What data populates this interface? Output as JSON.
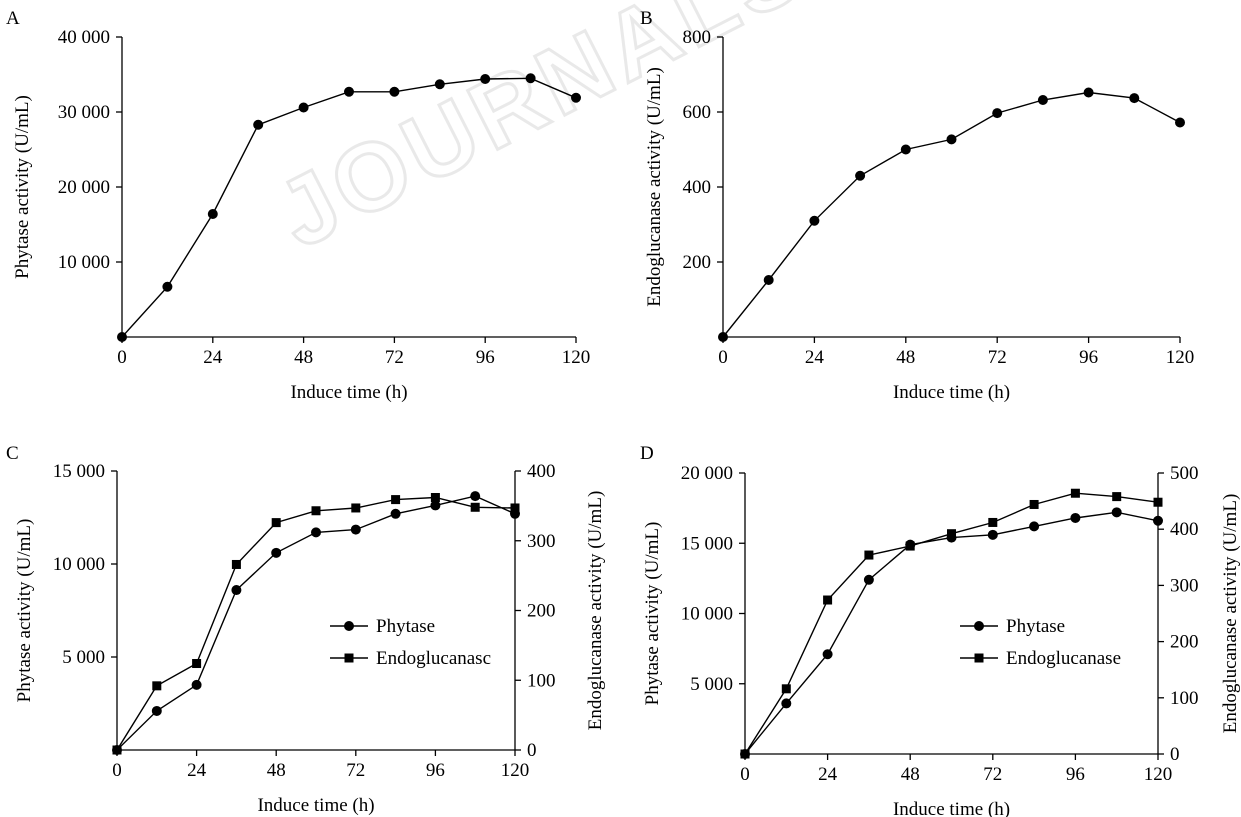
{
  "watermark": "JOURNALS.IM",
  "chart_data": [
    {
      "panel": "A",
      "type": "line",
      "xlabel": "Induce time (h)",
      "ylabel": "Phytase activity (U/mL)",
      "xlim": [
        0,
        120
      ],
      "ylim": [
        0,
        40000
      ],
      "xticks": [
        0,
        24,
        48,
        72,
        96,
        120
      ],
      "xtick_labels": [
        "0",
        "24",
        "48",
        "72",
        "96",
        "120"
      ],
      "yticks": [
        10000,
        20000,
        30000,
        40000
      ],
      "ytick_labels": [
        "10 000",
        "20 000",
        "30 000",
        "40 000"
      ],
      "grid": false,
      "series": [
        {
          "marker": "circle",
          "axis": "left",
          "x": [
            0,
            12,
            24,
            36,
            48,
            60,
            72,
            84,
            96,
            108,
            120
          ],
          "y": [
            0,
            6700,
            16400,
            28300,
            30600,
            32700,
            32700,
            33700,
            34400,
            34500,
            31900
          ]
        }
      ]
    },
    {
      "panel": "B",
      "type": "line",
      "xlabel": "Induce time (h)",
      "ylabel": "Endoglucanase activity (U/mL)",
      "xlim": [
        0,
        120
      ],
      "ylim": [
        0,
        800
      ],
      "xticks": [
        0,
        24,
        48,
        72,
        96,
        120
      ],
      "xtick_labels": [
        "0",
        "24",
        "48",
        "72",
        "96",
        "120"
      ],
      "yticks": [
        200,
        400,
        600,
        800
      ],
      "ytick_labels": [
        "200",
        "400",
        "600",
        "800"
      ],
      "grid": false,
      "series": [
        {
          "marker": "circle",
          "axis": "left",
          "x": [
            0,
            12,
            24,
            36,
            48,
            60,
            72,
            84,
            96,
            108,
            120
          ],
          "y": [
            0,
            152,
            310,
            430,
            500,
            527,
            597,
            632,
            652,
            637,
            572
          ]
        }
      ]
    },
    {
      "panel": "C",
      "type": "line",
      "xlabel": "Induce time (h)",
      "ylabel": "Phytase activity (U/mL)",
      "y2label": "Endoglucanase activity (U/mL)",
      "xlim": [
        0,
        120
      ],
      "ylim": [
        0,
        15000
      ],
      "y2lim": [
        0,
        400
      ],
      "xticks": [
        0,
        24,
        48,
        72,
        96,
        120
      ],
      "xtick_labels": [
        "0",
        "24",
        "48",
        "72",
        "96",
        "120"
      ],
      "yticks": [
        5000,
        10000,
        15000
      ],
      "ytick_labels": [
        "5 000",
        "10 000",
        "15 000"
      ],
      "y2ticks": [
        0,
        100,
        200,
        300,
        400
      ],
      "y2tick_labels": [
        "0",
        "100",
        "200",
        "300",
        "400"
      ],
      "grid": false,
      "legend_position": "center-right",
      "series": [
        {
          "name": "Phytase",
          "marker": "circle",
          "axis": "left",
          "x": [
            0,
            12,
            24,
            36,
            48,
            60,
            72,
            84,
            96,
            108,
            120
          ],
          "y": [
            0,
            2100,
            3500,
            8600,
            10600,
            11700,
            11850,
            12700,
            13150,
            13650,
            12700
          ]
        },
        {
          "name": "Endoglucanasc",
          "marker": "square",
          "axis": "right",
          "x": [
            0,
            12,
            24,
            36,
            48,
            60,
            72,
            84,
            96,
            108,
            120
          ],
          "y": [
            0,
            92,
            124,
            266,
            326,
            343,
            347,
            359,
            362,
            348,
            347
          ]
        }
      ]
    },
    {
      "panel": "D",
      "type": "line",
      "xlabel": "Induce time (h)",
      "ylabel": "Phytase activity (U/mL)",
      "y2label": "Endoglucanase activity (U/mL)",
      "xlim": [
        0,
        120
      ],
      "ylim": [
        0,
        20000
      ],
      "y2lim": [
        0,
        500
      ],
      "xticks": [
        0,
        24,
        48,
        72,
        96,
        120
      ],
      "xtick_labels": [
        "0",
        "24",
        "48",
        "72",
        "96",
        "120"
      ],
      "yticks": [
        5000,
        10000,
        15000,
        20000
      ],
      "ytick_labels": [
        "5 000",
        "10 000",
        "15 000",
        "20 000"
      ],
      "y2ticks": [
        0,
        100,
        200,
        300,
        400,
        500
      ],
      "y2tick_labels": [
        "0",
        "100",
        "200",
        "300",
        "400",
        "500"
      ],
      "grid": false,
      "legend_position": "center-right",
      "series": [
        {
          "name": "Phytase",
          "marker": "circle",
          "axis": "left",
          "x": [
            0,
            12,
            24,
            36,
            48,
            60,
            72,
            84,
            96,
            108,
            120
          ],
          "y": [
            0,
            3600,
            7100,
            12400,
            14900,
            15400,
            15600,
            16200,
            16800,
            17200,
            16600
          ]
        },
        {
          "name": "Endoglucanase",
          "marker": "square",
          "axis": "right",
          "x": [
            0,
            12,
            24,
            36,
            48,
            60,
            72,
            84,
            96,
            108,
            120
          ],
          "y": [
            0,
            116,
            274,
            354,
            370,
            392,
            412,
            444,
            464,
            458,
            448
          ]
        }
      ]
    }
  ]
}
